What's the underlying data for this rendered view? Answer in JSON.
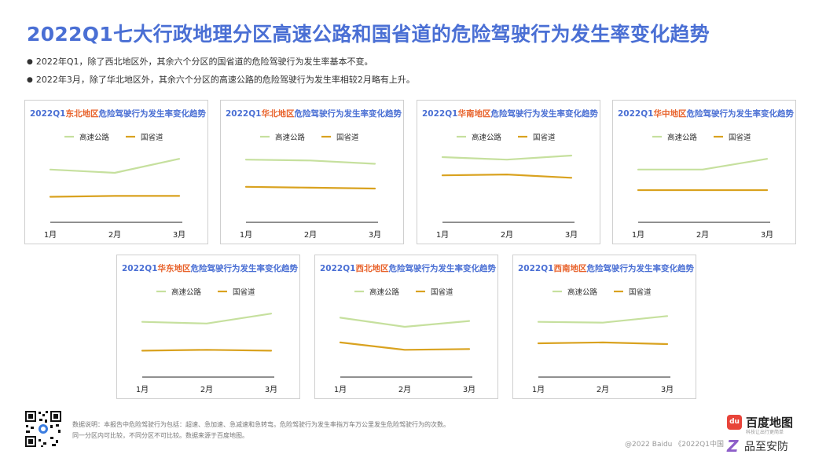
{
  "page": {
    "title": "2022Q1七大行政地理分区高速公路和国省道的危险驾驶行为发生率变化趋势",
    "bullets": [
      "2022年Q1，除了西北地区外，其余六个分区的国省道的危险驾驶行为发生率基本不变。",
      "2022年3月，除了华北地区外，其余六个分区的高速公路的危险驾驶行为发生率相较2月略有上升。"
    ],
    "footnote_lines": [
      "数据说明：本报告中危险驾驶行为包括：超速、急加速、急减速和急转弯。危险驾驶行为发生率指万车万公里发生危险驾驶行为的次数。",
      "同一分区内可比较，不同分区不可比较。数据来源于百度地图。"
    ],
    "copyright": "@2022 Baidu 《2022Q1中国",
    "logo": {
      "badge": "du",
      "text": "百度地图",
      "sub": "科技让出行更简单"
    },
    "watermark": {
      "mark": "Z",
      "text": "品至安防"
    }
  },
  "colors": {
    "title": "#4a6fd4",
    "highway": "#c6e09e",
    "national": "#d9a21f",
    "region": "#e8632c",
    "axis": "#222222"
  },
  "chart_data": [
    {
      "type": "line",
      "title_prefix": "2022Q1",
      "region": "东北地区",
      "title_suffix": "危险驾驶行为发生率变化趋势",
      "categories": [
        "1月",
        "2月",
        "3月"
      ],
      "series": [
        {
          "name": "高速公路",
          "values": [
            64,
            60,
            77
          ]
        },
        {
          "name": "国省道",
          "values": [
            31,
            32,
            32
          ]
        }
      ]
    },
    {
      "type": "line",
      "title_prefix": "2022Q1",
      "region": "华北地区",
      "title_suffix": "危险驾驶行为发生率变化趋势",
      "categories": [
        "1月",
        "2月",
        "3月"
      ],
      "series": [
        {
          "name": "高速公路",
          "values": [
            76,
            75,
            71
          ]
        },
        {
          "name": "国省道",
          "values": [
            43,
            42,
            41
          ]
        }
      ]
    },
    {
      "type": "line",
      "title_prefix": "2022Q1",
      "region": "华南地区",
      "title_suffix": "危险驾驶行为发生率变化趋势",
      "categories": [
        "1月",
        "2月",
        "3月"
      ],
      "series": [
        {
          "name": "高速公路",
          "values": [
            79,
            76,
            81
          ]
        },
        {
          "name": "国省道",
          "values": [
            57,
            58,
            54
          ]
        }
      ]
    },
    {
      "type": "line",
      "title_prefix": "2022Q1",
      "region": "华中地区",
      "title_suffix": "危险驾驶行为发生率变化趋势",
      "categories": [
        "1月",
        "2月",
        "3月"
      ],
      "series": [
        {
          "name": "高速公路",
          "values": [
            64,
            64,
            77
          ]
        },
        {
          "name": "国省道",
          "values": [
            39,
            39,
            39
          ]
        }
      ]
    },
    {
      "type": "line",
      "title_prefix": "2022Q1",
      "region": "华东地区",
      "title_suffix": "危险驾驶行为发生率变化趋势",
      "categories": [
        "1月",
        "2月",
        "3月"
      ],
      "series": [
        {
          "name": "高速公路",
          "values": [
            67,
            65,
            77
          ]
        },
        {
          "name": "国省道",
          "values": [
            32,
            33,
            32
          ]
        }
      ]
    },
    {
      "type": "line",
      "title_prefix": "2022Q1",
      "region": "西北地区",
      "title_suffix": "危险驾驶行为发生率变化趋势",
      "categories": [
        "1月",
        "2月",
        "3月"
      ],
      "series": [
        {
          "name": "高速公路",
          "values": [
            72,
            61,
            68
          ]
        },
        {
          "name": "国省道",
          "values": [
            42,
            33,
            34
          ]
        }
      ]
    },
    {
      "type": "line",
      "title_prefix": "2022Q1",
      "region": "西南地区",
      "title_suffix": "危险驾驶行为发生率变化趋势",
      "categories": [
        "1月",
        "2月",
        "3月"
      ],
      "series": [
        {
          "name": "高速公路",
          "values": [
            67,
            66,
            74
          ]
        },
        {
          "name": "国省道",
          "values": [
            41,
            42,
            40
          ]
        }
      ]
    }
  ]
}
